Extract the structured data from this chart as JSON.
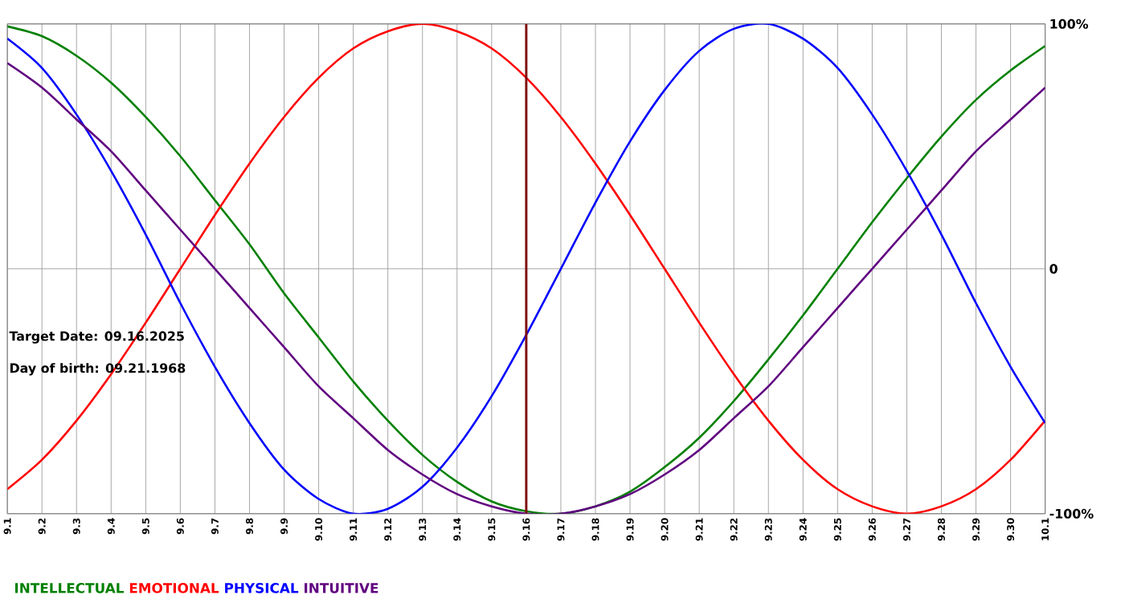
{
  "chart_data": {
    "type": "line",
    "categories": [
      "9.1",
      "9.2",
      "9.3",
      "9.4",
      "9.5",
      "9.6",
      "9.7",
      "9.8",
      "9.9",
      "9.10",
      "9.11",
      "9.12",
      "9.13",
      "9.14",
      "9.15",
      "9.16",
      "9.17",
      "9.18",
      "9.19",
      "9.20",
      "9.21",
      "9.22",
      "9.23",
      "9.24",
      "9.25",
      "9.26",
      "9.27",
      "9.28",
      "9.29",
      "9.30",
      "10.1"
    ],
    "series": [
      {
        "name": "INTELLECTUAL",
        "color": "#008000",
        "values": [
          99,
          95,
          87,
          76,
          62,
          46,
          28,
          10,
          -10,
          -28,
          -46,
          -62,
          -76,
          -87,
          -95,
          -99,
          -100,
          -97,
          -91,
          -81,
          -69,
          -54,
          -37,
          -19,
          0,
          19,
          37,
          54,
          69,
          81,
          91
        ]
      },
      {
        "name": "EMOTIONAL",
        "color": "#ff0000",
        "values": [
          -90,
          -78,
          -62,
          -43,
          -22,
          0,
          22,
          43,
          62,
          78,
          90,
          97,
          100,
          97,
          90,
          78,
          62,
          43,
          22,
          0,
          -22,
          -43,
          -62,
          -78,
          -90,
          -97,
          -100,
          -97,
          -90,
          -78,
          -62
        ]
      },
      {
        "name": "PHYSICAL",
        "color": "#0000ff",
        "values": [
          94,
          82,
          63,
          40,
          14,
          -14,
          -40,
          -63,
          -82,
          -94,
          -100,
          -98,
          -89,
          -73,
          -52,
          -27,
          0,
          27,
          52,
          73,
          89,
          98,
          100,
          94,
          82,
          63,
          40,
          14,
          -14,
          -40,
          -63
        ]
      },
      {
        "name": "INTUITIVE",
        "color": "#600080",
        "values": [
          84,
          74,
          61,
          48,
          32,
          16,
          0,
          -16,
          -32,
          -48,
          -61,
          -74,
          -84,
          -92,
          -97,
          -100,
          -100,
          -97,
          -92,
          -84,
          -74,
          -61,
          -48,
          -32,
          -16,
          0,
          16,
          32,
          48,
          61,
          74
        ]
      }
    ],
    "ylim": [
      -100,
      100
    ],
    "yticks": [
      {
        "value": -100,
        "label": "-100%"
      },
      0,
      {
        "value": 100,
        "label": "100%"
      }
    ],
    "ref_lines": [
      {
        "axis": "x",
        "value": "9.16",
        "color": "#7f1010"
      }
    ],
    "annotations": [
      "Target Date: 09.16.2025",
      "Day of birth: 09.21.1968"
    ],
    "grid": true,
    "legend": "bottom",
    "line_style": "solid",
    "marker": "none"
  }
}
